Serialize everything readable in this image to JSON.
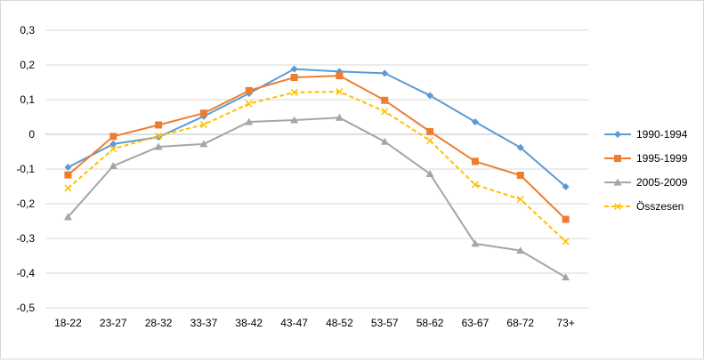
{
  "chart_data": {
    "type": "line",
    "title": "",
    "xlabel": "",
    "ylabel": "",
    "categories": [
      "18-22",
      "23-27",
      "28-32",
      "33-37",
      "38-42",
      "43-47",
      "48-52",
      "53-57",
      "58-62",
      "63-67",
      "68-72",
      "73+"
    ],
    "ylim": [
      -0.5,
      0.3
    ],
    "yticks": [
      -0.5,
      -0.4,
      -0.3,
      -0.2,
      -0.1,
      0,
      0.1,
      0.2,
      0.3
    ],
    "ytick_labels": [
      "-0,5",
      "-0,4",
      "-0,3",
      "-0,2",
      "-0,1",
      "0",
      "0,1",
      "0,2",
      "0,3"
    ],
    "grid": true,
    "legend_position": "right",
    "series": [
      {
        "name": "1990-1994",
        "color": "#5b9bd5",
        "marker": "diamond",
        "dashed": false,
        "values": [
          -0.095,
          -0.028,
          -0.008,
          0.052,
          0.118,
          0.188,
          0.181,
          0.176,
          0.112,
          0.036,
          -0.038,
          -0.151
        ]
      },
      {
        "name": "1995-1999",
        "color": "#ed7d31",
        "marker": "square",
        "dashed": false,
        "values": [
          -0.117,
          -0.006,
          0.027,
          0.061,
          0.126,
          0.164,
          0.169,
          0.098,
          0.008,
          -0.078,
          -0.118,
          -0.245
        ]
      },
      {
        "name": "2005-2009",
        "color": "#a5a5a5",
        "marker": "triangle",
        "dashed": false,
        "values": [
          -0.238,
          -0.091,
          -0.036,
          -0.028,
          0.036,
          0.041,
          0.048,
          -0.021,
          -0.114,
          -0.315,
          -0.335,
          -0.412
        ]
      },
      {
        "name": "Összesen",
        "color": "#ffc000",
        "marker": "x",
        "dashed": true,
        "values": [
          -0.155,
          -0.042,
          -0.005,
          0.028,
          0.088,
          0.121,
          0.123,
          0.066,
          -0.018,
          -0.145,
          -0.187,
          -0.309
        ]
      }
    ]
  }
}
